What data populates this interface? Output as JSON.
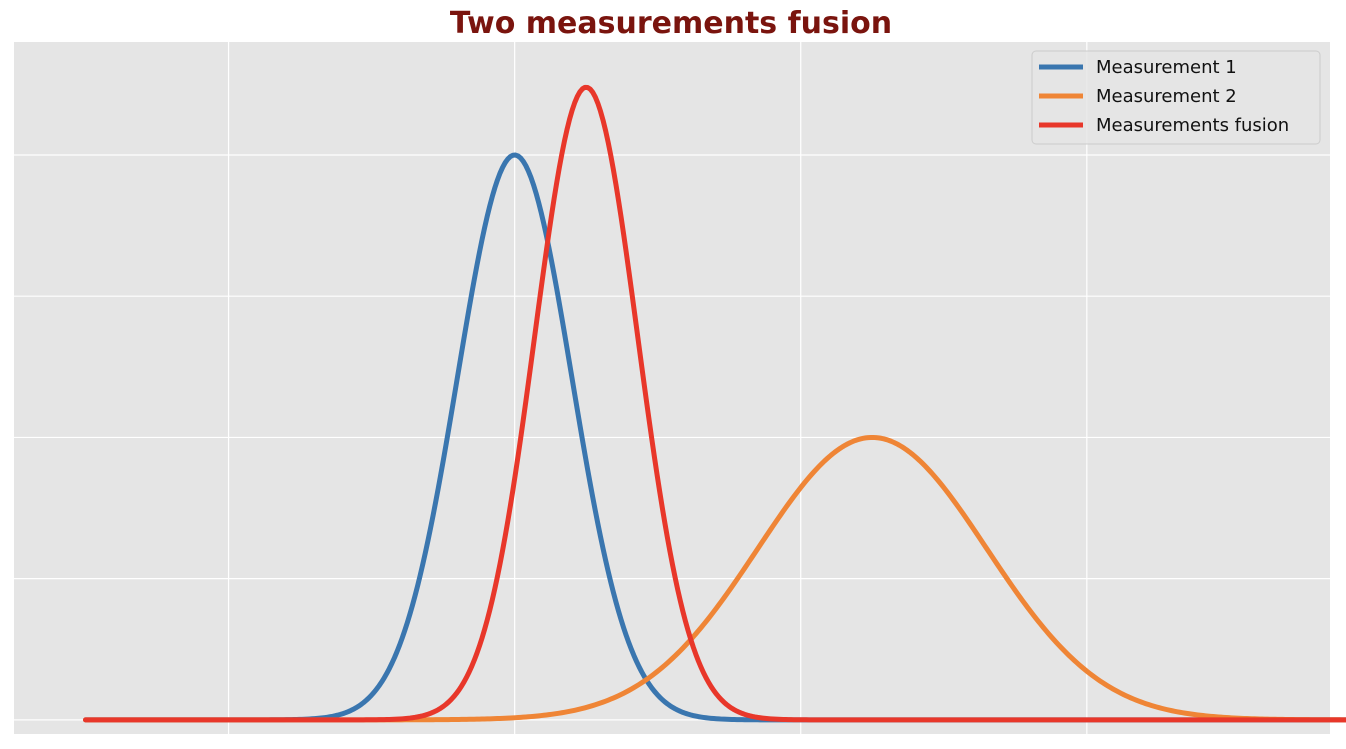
{
  "chart_data": {
    "type": "line",
    "title": "Two measurements fusion",
    "xlabel": "",
    "ylabel": "",
    "xlim": [
      -1.5,
      7.7
    ],
    "ylim": [
      -0.05,
      2.4
    ],
    "xgrid": [
      0,
      2,
      4,
      6,
      8
    ],
    "ygrid": [
      0,
      0.5,
      1.0,
      1.5,
      2.0
    ],
    "grid": true,
    "legend_position": "top-right",
    "x_range": [
      -1.0,
      8.0
    ],
    "series": [
      {
        "name": "Measurement 1",
        "color": "#3A76AF",
        "distribution": "gaussian",
        "mean": 2.0,
        "std": 0.4,
        "peak": 2.0
      },
      {
        "name": "Measurement 2",
        "color": "#EF8536",
        "distribution": "gaussian",
        "mean": 4.5,
        "std": 0.8,
        "peak": 1.0
      },
      {
        "name": "Measurements fusion",
        "color": "#E8372A",
        "distribution": "gaussian",
        "mean": 2.5,
        "std": 0.36,
        "peak": 2.24
      }
    ]
  },
  "colors": {
    "title": "#7A140E",
    "plot_background": "#E5E5E5",
    "grid": "#FFFFFF"
  }
}
